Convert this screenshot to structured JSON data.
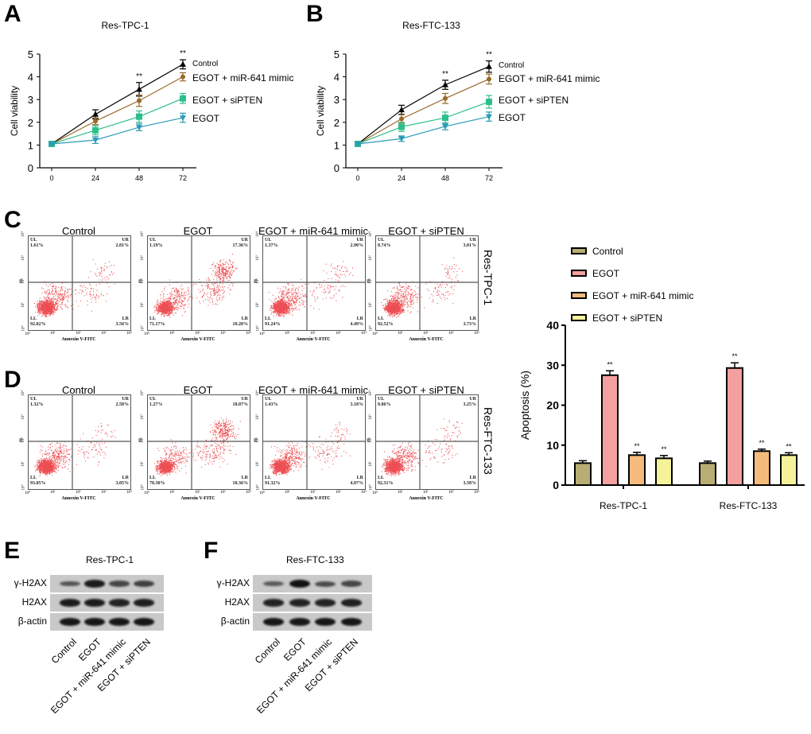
{
  "panels": {
    "A": "A",
    "B": "B",
    "C": "C",
    "D": "D",
    "E": "E",
    "F": "F"
  },
  "chart_data": [
    {
      "id": "A",
      "type": "line",
      "title": "Res-TPC-1",
      "xlabel": "",
      "ylabel": "Cell viability",
      "x": [
        0,
        24,
        48,
        72
      ],
      "xticks": [
        "0",
        "24",
        "48",
        "72"
      ],
      "yticks": [
        "0",
        "1",
        "2",
        "3",
        "4",
        "5"
      ],
      "ylim": [
        0,
        5
      ],
      "grid": false,
      "legend": "right (inline labels)",
      "series": [
        {
          "name": "Control",
          "marker": "triangle-up",
          "color": "#000000",
          "values": [
            1.05,
            2.35,
            3.45,
            4.55
          ],
          "errors": [
            0.05,
            0.2,
            0.3,
            0.2
          ]
        },
        {
          "name": "EGOT +  miR-641 mimic",
          "marker": "diamond",
          "color": "#9a6a2a",
          "values": [
            1.05,
            2.05,
            2.95,
            4.0
          ],
          "errors": [
            0.05,
            0.15,
            0.25,
            0.18
          ]
        },
        {
          "name": "EGOT + siPTEN",
          "marker": "square",
          "color": "#2dbf8a",
          "values": [
            1.05,
            1.65,
            2.25,
            3.05
          ],
          "errors": [
            0.05,
            0.2,
            0.25,
            0.22
          ]
        },
        {
          "name": "EGOT",
          "marker": "triangle-down",
          "color": "#2b9bb8",
          "values": [
            1.05,
            1.22,
            1.78,
            2.2
          ],
          "errors": [
            0.05,
            0.15,
            0.15,
            0.2
          ]
        }
      ],
      "annotations": [
        {
          "x": 48,
          "text": "**"
        },
        {
          "x": 72,
          "text": "**"
        }
      ]
    },
    {
      "id": "B",
      "type": "line",
      "title": "Res-FTC-133",
      "xlabel": "",
      "ylabel": "Cell viability",
      "x": [
        0,
        24,
        48,
        72
      ],
      "xticks": [
        "0",
        "24",
        "48",
        "72"
      ],
      "yticks": [
        "0",
        "1",
        "2",
        "3",
        "4",
        "5"
      ],
      "ylim": [
        0,
        5
      ],
      "grid": false,
      "legend": "right (inline labels)",
      "series": [
        {
          "name": "Control",
          "marker": "triangle-up",
          "color": "#000000",
          "values": [
            1.05,
            2.55,
            3.65,
            4.45
          ],
          "errors": [
            0.05,
            0.2,
            0.2,
            0.25
          ]
        },
        {
          "name": "EGOT +  miR-641 mimic",
          "marker": "diamond",
          "color": "#9a6a2a",
          "values": [
            1.05,
            2.15,
            3.05,
            3.9
          ],
          "errors": [
            0.05,
            0.18,
            0.22,
            0.22
          ]
        },
        {
          "name": "EGOT + siPTEN",
          "marker": "square",
          "color": "#2dbf8a",
          "values": [
            1.05,
            1.8,
            2.2,
            2.9
          ],
          "errors": [
            0.05,
            0.2,
            0.25,
            0.28
          ]
        },
        {
          "name": "EGOT",
          "marker": "triangle-down",
          "color": "#2b9bb8",
          "values": [
            1.05,
            1.28,
            1.82,
            2.25
          ],
          "errors": [
            0.05,
            0.12,
            0.15,
            0.2
          ]
        }
      ],
      "annotations": [
        {
          "x": 48,
          "text": "**"
        },
        {
          "x": 72,
          "text": "**"
        }
      ]
    },
    {
      "id": "bar",
      "type": "bar",
      "title": "",
      "xlabel": "",
      "ylabel": "Apoptosis (%)",
      "categories": [
        "Res-TPC-1",
        "Res-FTC-133"
      ],
      "yticks": [
        "0",
        "10",
        "20",
        "30",
        "40"
      ],
      "ylim": [
        0,
        40
      ],
      "grid": false,
      "legend": "top",
      "series": [
        {
          "name": "Control",
          "color": "#b8ad72",
          "values": [
            5.5,
            5.5
          ],
          "errors": [
            0.6,
            0.5
          ],
          "sig": [
            "",
            ""
          ]
        },
        {
          "name": "EGOT",
          "color": "#f4a0a0",
          "values": [
            27.5,
            29.3
          ],
          "errors": [
            1.1,
            1.3
          ],
          "sig": [
            "**",
            "**"
          ]
        },
        {
          "name": "EGOT +  miR-641 mimic",
          "color": "#f5bb7d",
          "values": [
            7.5,
            8.5
          ],
          "errors": [
            0.7,
            0.5
          ],
          "sig": [
            "**",
            "**"
          ]
        },
        {
          "name": "EGOT + siPTEN",
          "color": "#f6f29a",
          "values": [
            6.7,
            7.5
          ],
          "errors": [
            0.7,
            0.6
          ],
          "sig": [
            "**",
            "**"
          ]
        }
      ]
    }
  ],
  "flow": {
    "xlabel": "Annexin V-FITC",
    "ylabel": "PI",
    "xticks": [
      "10⁰",
      "10¹",
      "10²",
      "10³",
      "10⁴"
    ],
    "yticks": [
      "10⁰",
      "10¹",
      "10²",
      "10³",
      "10⁴"
    ],
    "rows": [
      {
        "panel": "C",
        "side_label": "Res-TPC-1",
        "plots": [
          {
            "title": "Control",
            "UL": "1.61%",
            "UR": "2.81%",
            "LL": "92.02%",
            "LR": "3.56%"
          },
          {
            "title": "EGOT",
            "UL": "1.19%",
            "UR": "17.36%",
            "LL": "71.17%",
            "LR": "10.28%"
          },
          {
            "title": "EGOT +  miR-641 mimic",
            "UL": "1.37%",
            "UR": "2.90%",
            "LL": "91.24%",
            "LR": "4.49%"
          },
          {
            "title": "EGOT + siPTEN",
            "UL": "0.74%",
            "UR": "3.01%",
            "LL": "92.52%",
            "LR": "3.73%"
          }
        ]
      },
      {
        "panel": "D",
        "side_label": "Res-FTC-133",
        "plots": [
          {
            "title": "Control",
            "UL": "1.32%",
            "UR": "2.58%",
            "LL": "93.05%",
            "LR": "3.05%"
          },
          {
            "title": "EGOT",
            "UL": "1.27%",
            "UR": "18.07%",
            "LL": "70.30%",
            "LR": "10.36%"
          },
          {
            "title": "EGOT +  miR-641 mimic",
            "UL": "1.43%",
            "UR": "3.18%",
            "LL": "91.32%",
            "LR": "4.07%"
          },
          {
            "title": "EGOT + siPTEN",
            "UL": "0.86%",
            "UR": "3.25%",
            "LL": "92.31%",
            "LR": "3.58%"
          }
        ]
      }
    ]
  },
  "blots": [
    {
      "panel": "E",
      "title": "Res-TPC-1",
      "rows": [
        "γ-H2AX",
        "H2AX",
        "β-actin"
      ],
      "lanes": [
        "Control",
        "EGOT",
        "EGOT + miR-641 mimic",
        "EGOT + siPTEN"
      ],
      "intensity": [
        [
          0.45,
          0.9,
          0.55,
          0.6
        ],
        [
          0.9,
          0.9,
          0.85,
          0.88
        ],
        [
          0.95,
          0.95,
          0.95,
          0.95
        ]
      ]
    },
    {
      "panel": "F",
      "title": "Res-FTC-133",
      "rows": [
        "γ-H2AX",
        "H2AX",
        "β-actin"
      ],
      "lanes": [
        "Control",
        "EGOT",
        "EGOT + miR-641 mimic",
        "EGOT + siPTEN"
      ],
      "intensity": [
        [
          0.4,
          1.0,
          0.5,
          0.55
        ],
        [
          0.85,
          0.85,
          0.85,
          0.88
        ],
        [
          0.95,
          0.95,
          0.95,
          0.95
        ]
      ]
    }
  ],
  "flow_dot_color": "#e8141a"
}
